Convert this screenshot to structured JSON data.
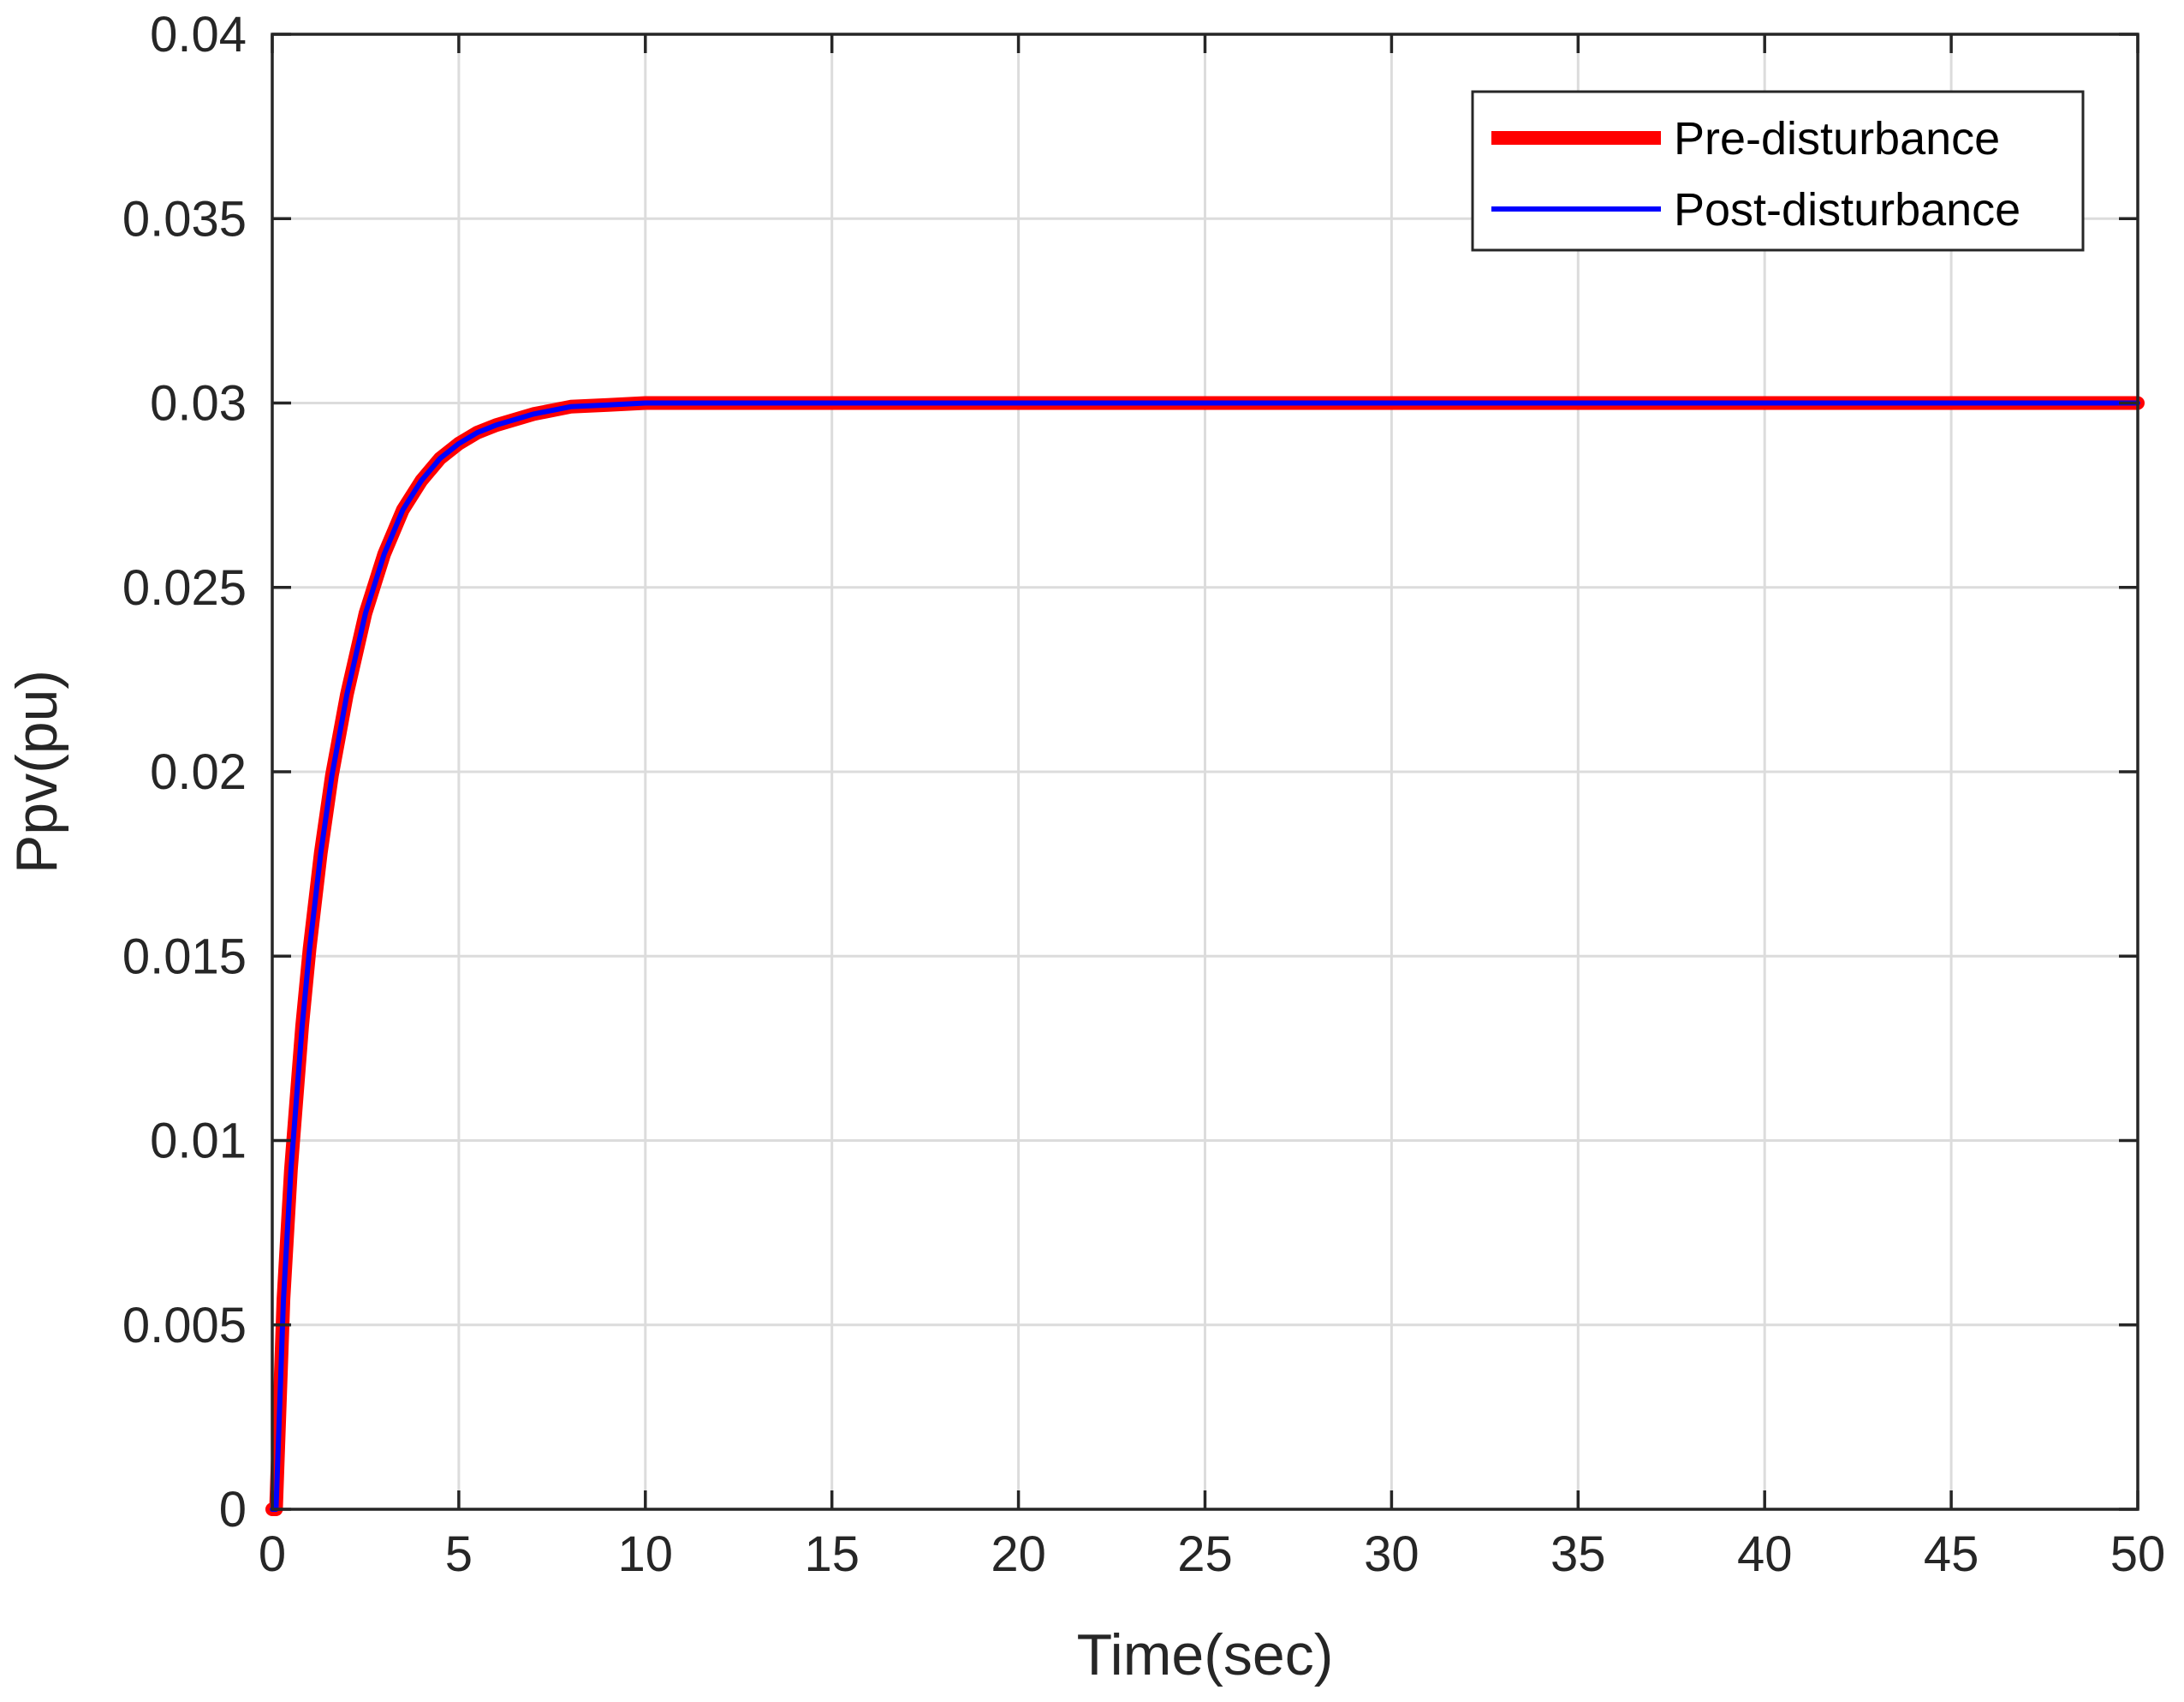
{
  "chart_data": {
    "type": "line",
    "title": "",
    "xlabel": "Time(sec)",
    "ylabel": "Ppv(pu)",
    "xlim": [
      0,
      50
    ],
    "ylim": [
      0,
      0.04
    ],
    "xticks": [
      0,
      5,
      10,
      15,
      20,
      25,
      30,
      35,
      40,
      45,
      50
    ],
    "xtick_labels": [
      "0",
      "5",
      "10",
      "15",
      "20",
      "25",
      "30",
      "35",
      "40",
      "45",
      "50"
    ],
    "yticks": [
      0,
      0.005,
      0.01,
      0.015,
      0.02,
      0.025,
      0.03,
      0.035,
      0.04
    ],
    "ytick_labels": [
      "0",
      "0.005",
      "0.01",
      "0.015",
      "0.02",
      "0.025",
      "0.03",
      "0.035",
      "0.04"
    ],
    "grid": true,
    "legend_position": "top-right",
    "series": [
      {
        "name": "Pre-disturbance",
        "color": "#ff0000",
        "x": [
          0,
          0.1,
          0.3,
          0.5,
          0.8,
          1.0,
          1.3,
          1.6,
          2.0,
          2.5,
          3.0,
          3.5,
          4.0,
          4.5,
          5.0,
          5.5,
          6.0,
          7.0,
          8.0,
          9.0,
          10.0,
          12.0,
          15.0,
          20.0,
          25.0,
          30.0,
          35.0,
          40.0,
          45.0,
          50.0
        ],
        "y": [
          0,
          0,
          0.0057,
          0.0092,
          0.0131,
          0.0152,
          0.0178,
          0.0199,
          0.0221,
          0.0243,
          0.0259,
          0.0271,
          0.0279,
          0.0285,
          0.0289,
          0.0292,
          0.0294,
          0.0297,
          0.0299,
          0.02995,
          0.03,
          0.03,
          0.03,
          0.03,
          0.03,
          0.03,
          0.03,
          0.03,
          0.03,
          0.03
        ]
      },
      {
        "name": "Post-disturbance",
        "color": "#0000ff",
        "x": [
          0,
          0.1,
          0.3,
          0.5,
          0.8,
          1.0,
          1.3,
          1.6,
          2.0,
          2.5,
          3.0,
          3.5,
          4.0,
          4.5,
          5.0,
          5.5,
          6.0,
          7.0,
          8.0,
          9.0,
          10.0,
          12.0,
          15.0,
          20.0,
          25.0,
          30.0,
          35.0,
          40.0,
          45.0,
          50.0
        ],
        "y": [
          0,
          0,
          0.0057,
          0.0092,
          0.0131,
          0.0152,
          0.0178,
          0.0199,
          0.0221,
          0.0243,
          0.0259,
          0.0271,
          0.0279,
          0.0285,
          0.0289,
          0.0292,
          0.0294,
          0.0297,
          0.0299,
          0.02995,
          0.03,
          0.03,
          0.03,
          0.03,
          0.03,
          0.03,
          0.03,
          0.03,
          0.03,
          0.03
        ]
      }
    ]
  }
}
